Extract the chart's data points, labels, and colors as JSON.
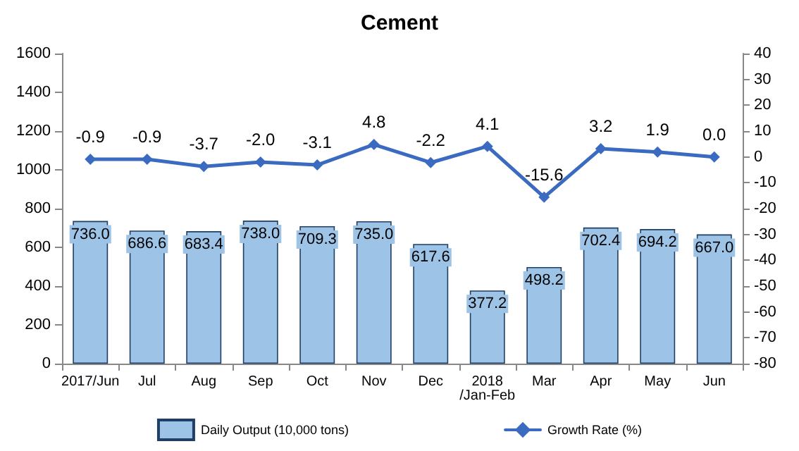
{
  "chart_data": {
    "type": "bar",
    "title": "Cement",
    "categories": [
      "2017/Jun",
      "Jul",
      "Aug",
      "Sep",
      "Oct",
      "Nov",
      "Dec",
      "2018\n/Jan-Feb",
      "Mar",
      "Apr",
      "May",
      "Jun"
    ],
    "series": [
      {
        "name": "Daily Output (10,000 tons)",
        "color": "#9dc3e6",
        "values": [
          736.0,
          686.6,
          683.4,
          738.0,
          709.3,
          735.0,
          617.6,
          377.2,
          498.2,
          702.4,
          694.2,
          667.0
        ],
        "value_labels": [
          "736.0",
          "686.6",
          "683.4",
          "738.0",
          "709.3",
          "735.0",
          "617.6",
          "377.2",
          "498.2",
          "702.4",
          "694.2",
          "667.0"
        ]
      },
      {
        "name": "Growth Rate (%)",
        "type": "line",
        "axis": "y2",
        "color": "#3a6bc0",
        "marker": "diamond",
        "values": [
          -0.9,
          -0.9,
          -3.7,
          -2.0,
          -3.1,
          4.8,
          -2.2,
          4.1,
          -15.6,
          3.2,
          1.9,
          0.0
        ],
        "value_labels": [
          "-0.9",
          "-0.9",
          "-3.7",
          "-2.0",
          "-3.1",
          "4.8",
          "-2.2",
          "4.1",
          "-15.6",
          "3.2",
          "1.9",
          "0.0"
        ]
      }
    ],
    "ylim": [
      0,
      1600
    ],
    "yticks": [
      0,
      200,
      400,
      600,
      800,
      1000,
      1200,
      1400,
      1600
    ],
    "y2lim": [
      -80,
      40
    ],
    "y2ticks": [
      -80,
      -70,
      -60,
      -50,
      -40,
      -30,
      -20,
      -10,
      0,
      10,
      20,
      30,
      40
    ],
    "grid": false,
    "legend": "bottom"
  }
}
